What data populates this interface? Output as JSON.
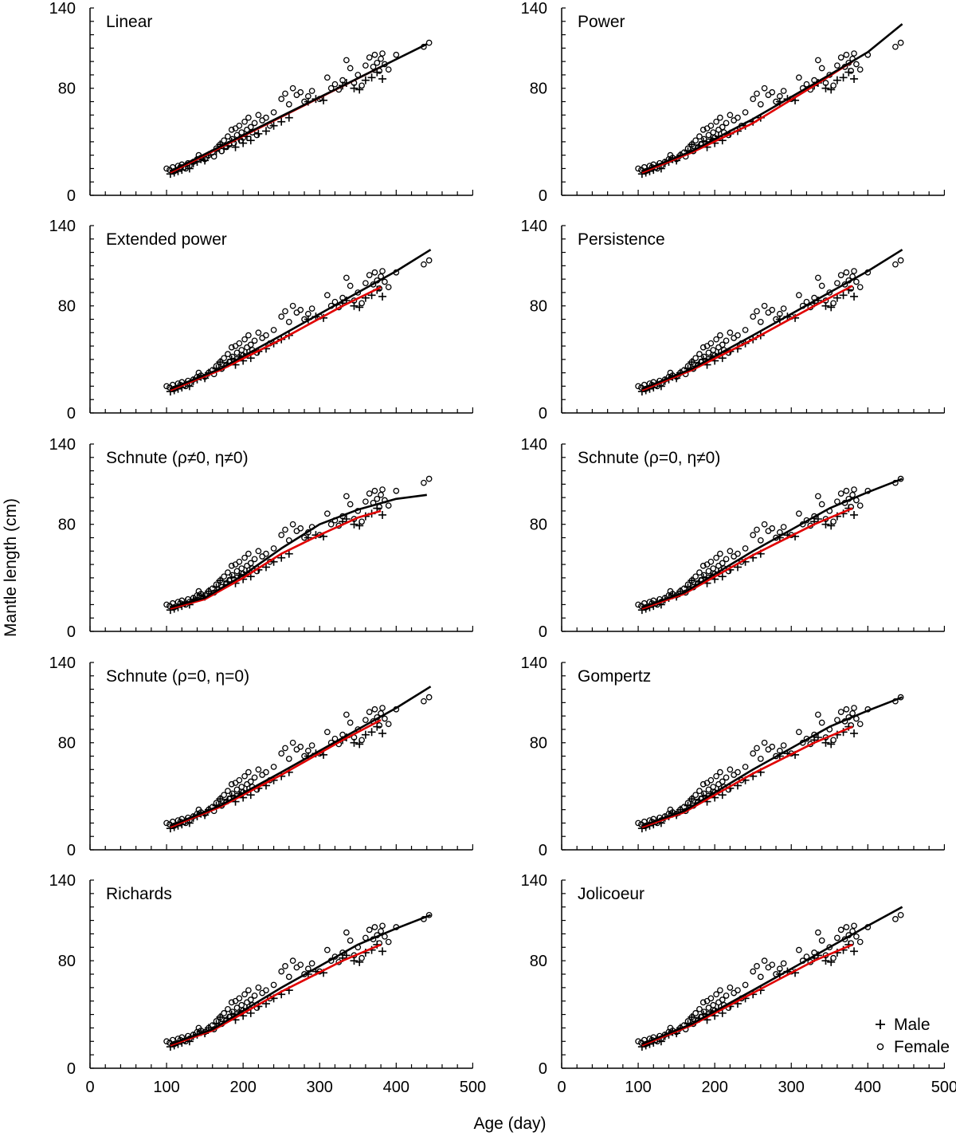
{
  "figure": {
    "xlabel": "Age (day)",
    "ylabel": "Mantle length (cm)",
    "legend": {
      "placement": "bottom-right",
      "items": [
        {
          "symbol": "+",
          "label": "Male"
        },
        {
          "symbol": "o",
          "label": "Female"
        }
      ]
    }
  },
  "chart_data": [
    {
      "type": "scatter",
      "title": "Linear",
      "xlim": [
        0,
        500
      ],
      "ylim": [
        0,
        140
      ],
      "xticks": [
        "0",
        "100",
        "200",
        "300",
        "400",
        "500"
      ],
      "yticks": [
        "0",
        "80",
        "140"
      ],
      "series": [
        {
          "name": "Female",
          "color": "#000000",
          "x": [
            105,
            440
          ],
          "y": [
            18,
            113
          ]
        },
        {
          "name": "Male",
          "color": "#e00000",
          "x": [
            105,
            380
          ],
          "y": [
            17,
            96
          ]
        }
      ]
    },
    {
      "type": "scatter",
      "title": "Power",
      "xlim": [
        0,
        500
      ],
      "ylim": [
        0,
        140
      ],
      "xticks": [
        "0",
        "100",
        "200",
        "300",
        "400",
        "500"
      ],
      "yticks": [
        "0",
        "80",
        "140"
      ],
      "series": [
        {
          "name": "Female",
          "color": "#000000",
          "x": [
            105,
            170,
            250,
            350,
            400,
            445
          ],
          "y": [
            18,
            33,
            57,
            90,
            107,
            128
          ]
        },
        {
          "name": "Male",
          "color": "#e00000",
          "x": [
            105,
            170,
            250,
            330,
            380
          ],
          "y": [
            17,
            32,
            54,
            82,
            100
          ]
        }
      ]
    },
    {
      "type": "scatter",
      "title": "Extended power",
      "xlim": [
        0,
        500
      ],
      "ylim": [
        0,
        140
      ],
      "xticks": [
        "0",
        "100",
        "200",
        "300",
        "400",
        "500"
      ],
      "yticks": [
        "0",
        "80",
        "140"
      ],
      "series": [
        {
          "name": "Female",
          "color": "#000000",
          "x": [
            105,
            170,
            250,
            350,
            400,
            445
          ],
          "y": [
            18,
            33,
            58,
            90,
            106,
            122
          ]
        },
        {
          "name": "Male",
          "color": "#e00000",
          "x": [
            105,
            170,
            250,
            330,
            380
          ],
          "y": [
            17,
            32,
            55,
            80,
            94
          ]
        }
      ]
    },
    {
      "type": "scatter",
      "title": "Persistence",
      "xlim": [
        0,
        500
      ],
      "ylim": [
        0,
        140
      ],
      "xticks": [
        "0",
        "100",
        "200",
        "300",
        "400",
        "500"
      ],
      "yticks": [
        "0",
        "80",
        "140"
      ],
      "series": [
        {
          "name": "Female",
          "color": "#000000",
          "x": [
            105,
            170,
            250,
            350,
            400,
            445
          ],
          "y": [
            18,
            33,
            58,
            90,
            106,
            122
          ]
        },
        {
          "name": "Male",
          "color": "#e00000",
          "x": [
            105,
            170,
            250,
            330,
            380
          ],
          "y": [
            17,
            32,
            55,
            80,
            95
          ]
        }
      ]
    },
    {
      "type": "scatter",
      "title": "Schnute (ρ≠0, η≠0)",
      "xlim": [
        0,
        500
      ],
      "ylim": [
        0,
        140
      ],
      "xticks": [
        "0",
        "100",
        "200",
        "300",
        "400",
        "500"
      ],
      "yticks": [
        "0",
        "80",
        "140"
      ],
      "series": [
        {
          "name": "Female",
          "color": "#000000",
          "x": [
            105,
            150,
            200,
            250,
            300,
            350,
            400,
            440
          ],
          "y": [
            18,
            25,
            42,
            62,
            80,
            91,
            99,
            102
          ]
        },
        {
          "name": "Male",
          "color": "#e00000",
          "x": [
            105,
            150,
            200,
            250,
            300,
            350,
            380
          ],
          "y": [
            17,
            24,
            40,
            58,
            72,
            85,
            90
          ]
        }
      ]
    },
    {
      "type": "scatter",
      "title": "Schnute (ρ=0, η≠0)",
      "xlim": [
        0,
        500
      ],
      "ylim": [
        0,
        140
      ],
      "xticks": [
        "0",
        "100",
        "200",
        "300",
        "400",
        "500"
      ],
      "yticks": [
        "0",
        "80",
        "140"
      ],
      "series": [
        {
          "name": "Female",
          "color": "#000000",
          "x": [
            105,
            160,
            250,
            350,
            400,
            445
          ],
          "y": [
            18,
            29,
            60,
            92,
            104,
            114
          ]
        },
        {
          "name": "Male",
          "color": "#e00000",
          "x": [
            105,
            160,
            250,
            330,
            380
          ],
          "y": [
            17,
            28,
            57,
            80,
            92
          ]
        }
      ]
    },
    {
      "type": "scatter",
      "title": "Schnute (ρ=0, η=0)",
      "xlim": [
        0,
        500
      ],
      "ylim": [
        0,
        140
      ],
      "xticks": [
        "0",
        "100",
        "200",
        "300",
        "400",
        "500"
      ],
      "yticks": [
        "0",
        "80",
        "140"
      ],
      "series": [
        {
          "name": "Female",
          "color": "#000000",
          "x": [
            105,
            170,
            250,
            350,
            400,
            445
          ],
          "y": [
            18,
            33,
            58,
            90,
            106,
            122
          ]
        },
        {
          "name": "Male",
          "color": "#e00000",
          "x": [
            105,
            170,
            250,
            330,
            380
          ],
          "y": [
            17,
            32,
            56,
            82,
            97
          ]
        }
      ]
    },
    {
      "type": "scatter",
      "title": "Gompertz",
      "xlim": [
        0,
        500
      ],
      "ylim": [
        0,
        140
      ],
      "xticks": [
        "0",
        "100",
        "200",
        "300",
        "400",
        "500"
      ],
      "yticks": [
        "0",
        "80",
        "140"
      ],
      "series": [
        {
          "name": "Female",
          "color": "#000000",
          "x": [
            105,
            160,
            250,
            350,
            400,
            445
          ],
          "y": [
            18,
            29,
            60,
            92,
            104,
            114
          ]
        },
        {
          "name": "Male",
          "color": "#e00000",
          "x": [
            105,
            160,
            250,
            330,
            380
          ],
          "y": [
            17,
            28,
            57,
            80,
            92
          ]
        }
      ]
    },
    {
      "type": "scatter",
      "title": "Richards",
      "xlim": [
        0,
        500
      ],
      "ylim": [
        0,
        140
      ],
      "xticks": [
        "0",
        "100",
        "200",
        "300",
        "400",
        "500"
      ],
      "yticks": [
        "0",
        "80",
        "140"
      ],
      "series": [
        {
          "name": "Female",
          "color": "#000000",
          "x": [
            105,
            160,
            250,
            350,
            400,
            445
          ],
          "y": [
            18,
            29,
            60,
            92,
            104,
            114
          ]
        },
        {
          "name": "Male",
          "color": "#e00000",
          "x": [
            105,
            160,
            250,
            330,
            380
          ],
          "y": [
            17,
            28,
            57,
            80,
            92
          ]
        }
      ]
    },
    {
      "type": "scatter",
      "title": "Jolicoeur",
      "xlim": [
        0,
        500
      ],
      "ylim": [
        0,
        140
      ],
      "xticks": [
        "0",
        "100",
        "200",
        "300",
        "400",
        "500"
      ],
      "yticks": [
        "0",
        "80",
        "140"
      ],
      "series": [
        {
          "name": "Female",
          "color": "#000000",
          "x": [
            105,
            170,
            250,
            350,
            400,
            445
          ],
          "y": [
            18,
            33,
            58,
            90,
            106,
            120
          ]
        },
        {
          "name": "Male",
          "color": "#e00000",
          "x": [
            105,
            170,
            250,
            330,
            380
          ],
          "y": [
            17,
            32,
            56,
            80,
            92
          ]
        }
      ]
    }
  ],
  "observations": {
    "female": {
      "marker": "o",
      "x": [
        100,
        104,
        108,
        110,
        115,
        118,
        120,
        125,
        128,
        130,
        135,
        140,
        142,
        145,
        150,
        155,
        160,
        162,
        165,
        170,
        172,
        175,
        178,
        180,
        182,
        185,
        186,
        188,
        190,
        192,
        195,
        197,
        198,
        200,
        202,
        205,
        207,
        210,
        212,
        215,
        218,
        220,
        225,
        230,
        235,
        240,
        250,
        255,
        260,
        265,
        270,
        275,
        280,
        285,
        290,
        300,
        310,
        315,
        320,
        325,
        330,
        335,
        340,
        345,
        350,
        355,
        360,
        365,
        370,
        372,
        375,
        378,
        380,
        382,
        385,
        390,
        400,
        436,
        443
      ],
      "y": [
        20,
        19,
        21,
        18,
        22,
        21,
        23,
        20,
        24,
        22,
        25,
        27,
        30,
        28,
        27,
        30,
        32,
        29,
        35,
        38,
        33,
        41,
        36,
        44,
        38,
        49,
        42,
        39,
        50,
        45,
        52,
        41,
        47,
        43,
        55,
        49,
        58,
        51,
        47,
        54,
        45,
        60,
        56,
        58,
        52,
        62,
        72,
        76,
        68,
        80,
        75,
        77,
        70,
        74,
        78,
        72,
        88,
        80,
        83,
        79,
        86,
        101,
        95,
        84,
        90,
        82,
        97,
        103,
        96,
        105,
        99,
        93,
        102,
        106,
        98,
        94,
        105,
        111,
        114
      ]
    },
    "male": {
      "marker": "+",
      "x": [
        105,
        110,
        115,
        120,
        125,
        130,
        135,
        140,
        145,
        150,
        155,
        165,
        170,
        175,
        180,
        185,
        190,
        195,
        200,
        205,
        210,
        220,
        230,
        240,
        250,
        260,
        285,
        295,
        305,
        330,
        335,
        345,
        352,
        360,
        368,
        375,
        382
      ],
      "y": [
        16,
        17,
        18,
        19,
        22,
        20,
        24,
        25,
        27,
        26,
        30,
        33,
        38,
        35,
        37,
        40,
        36,
        42,
        39,
        44,
        41,
        46,
        48,
        52,
        55,
        58,
        70,
        72,
        71,
        82,
        84,
        80,
        79,
        86,
        88,
        92,
        87
      ]
    }
  }
}
